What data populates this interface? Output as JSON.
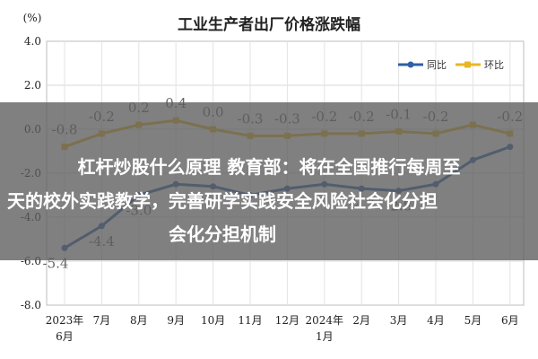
{
  "chart_data": {
    "type": "line",
    "title": "工业生产者出厂价格涨跌幅",
    "unit_label": "(%)",
    "ylim": [
      -8.0,
      4.0
    ],
    "yticks": [
      "4.0",
      "2.0",
      "0.0",
      "-2.0",
      "-4.0",
      "-6.0",
      "-8.0"
    ],
    "ytick_values": [
      4,
      2,
      0,
      -2,
      -4,
      -6,
      -8
    ],
    "grid": true,
    "legend_position": "top-right",
    "categories": [
      [
        "2023年",
        "6月"
      ],
      [
        "7月"
      ],
      [
        "8月"
      ],
      [
        "9月"
      ],
      [
        "10月"
      ],
      [
        "11月"
      ],
      [
        "12月"
      ],
      [
        "2024年",
        "1月"
      ],
      [
        "2月"
      ],
      [
        "3月"
      ],
      [
        "4月"
      ],
      [
        "5月"
      ],
      [
        "6月"
      ]
    ],
    "series": [
      {
        "name": "同比",
        "color": "#2e5fa8",
        "values": [
          -5.4,
          -4.4,
          -3.0,
          -2.5,
          -2.6,
          -3.0,
          -2.7,
          -2.5,
          -2.7,
          -2.8,
          -2.5,
          -1.4,
          -0.8
        ],
        "labels": [
          "-5.4",
          "-4.4",
          "-3.0",
          "",
          "",
          "",
          "",
          "",
          "-2.7",
          "-2.8",
          "",
          "",
          ""
        ]
      },
      {
        "name": "环比",
        "color": "#e8b823",
        "values": [
          -0.8,
          -0.2,
          0.2,
          0.4,
          0.0,
          -0.3,
          -0.3,
          -0.2,
          -0.2,
          -0.1,
          -0.2,
          0.2,
          -0.2
        ],
        "labels": [
          "-0.8",
          "-0.2",
          "0.2",
          "0.4",
          "0.0",
          "-0.3",
          "-0.3",
          "-0.2",
          "-0.2",
          "-0.1",
          "-0.2",
          "",
          "-0.2"
        ]
      }
    ]
  },
  "overlay": {
    "line1": "杠杆炒股什么原理 教育部：将在全国推行每周至",
    "line2": "天的校外实践教学，完善研学实践安全风险社会化分担",
    "line3": "会化分担机制"
  }
}
